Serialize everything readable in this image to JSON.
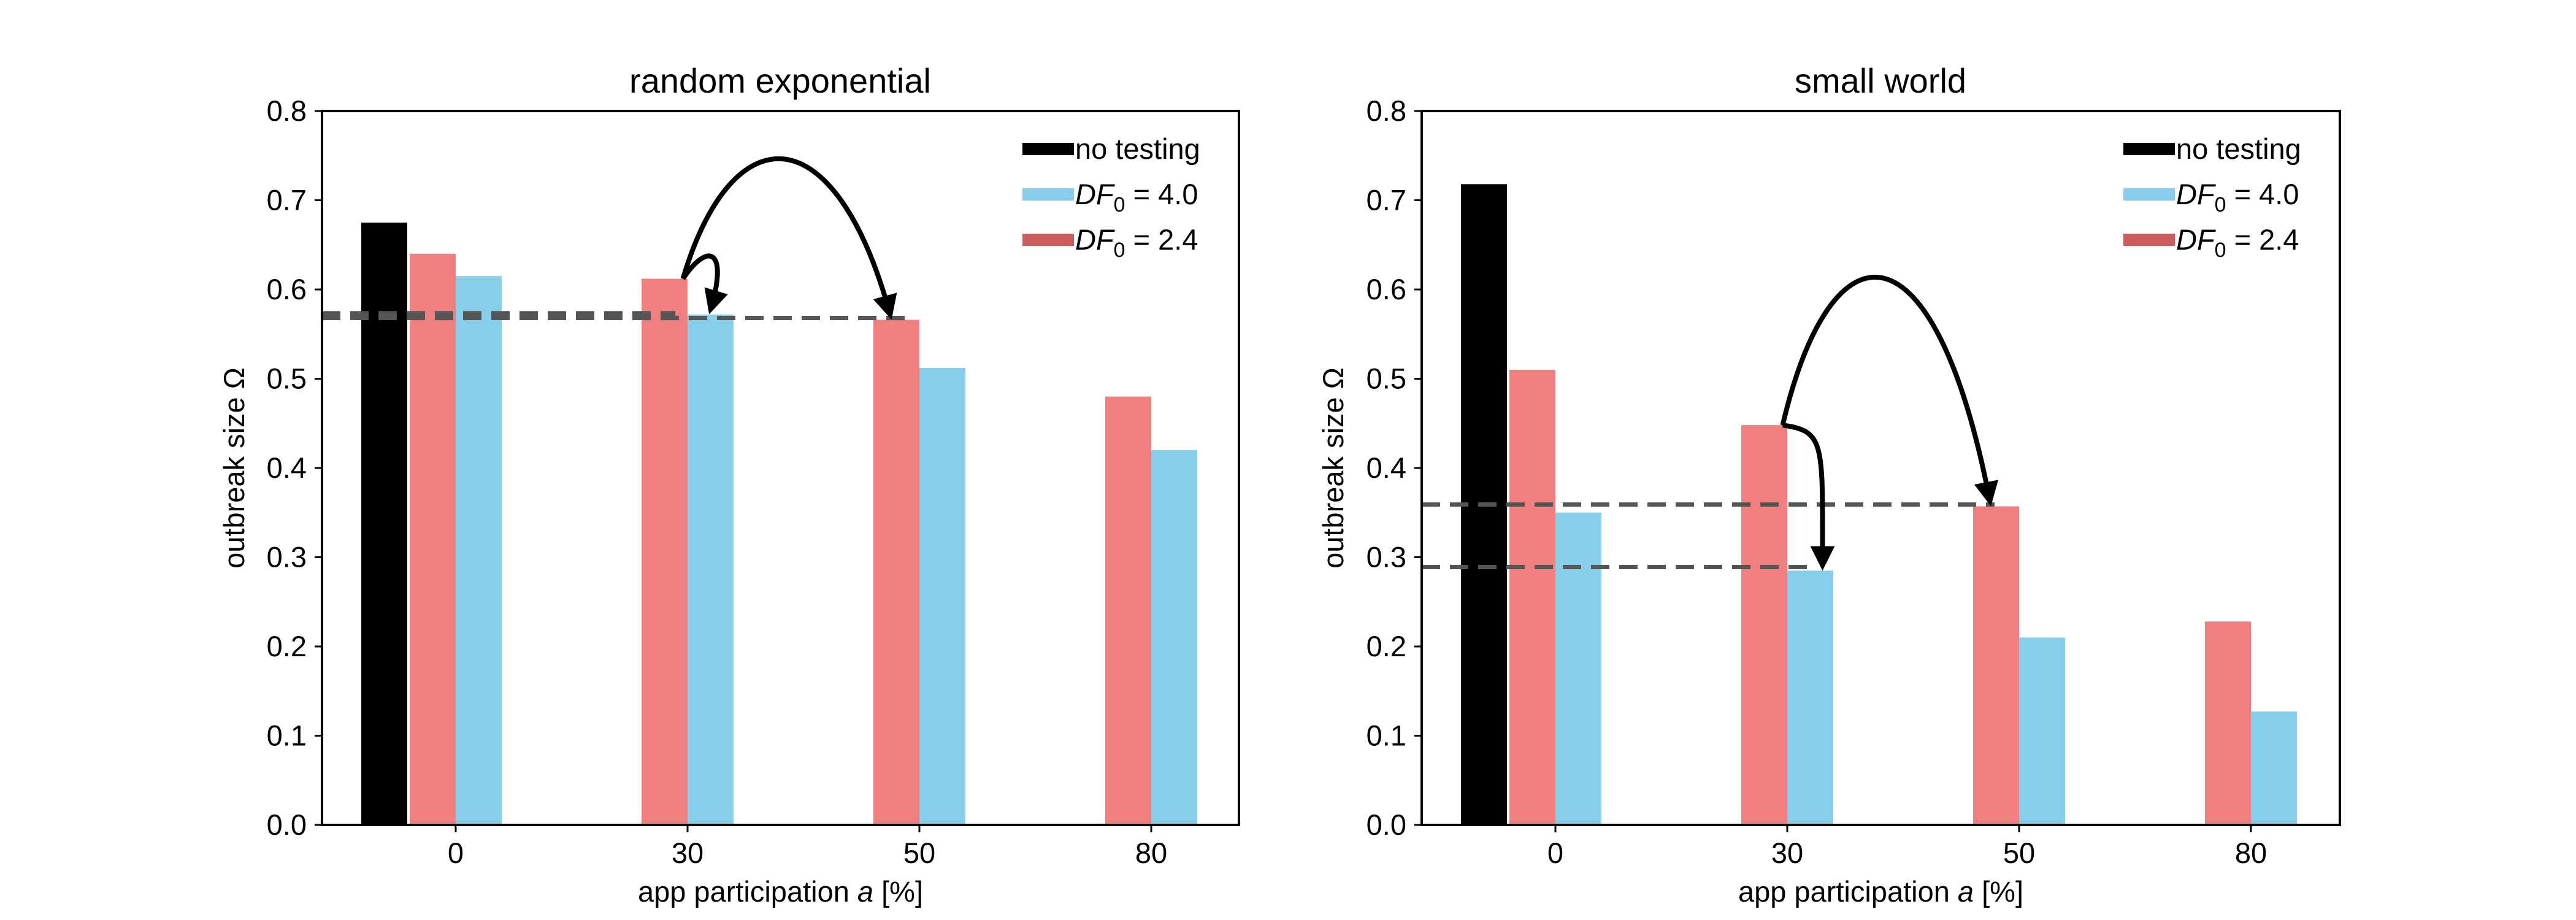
{
  "chart_data": [
    {
      "type": "bar",
      "title": "random exponential",
      "xlabel": "app participation a [%]",
      "ylabel": "outbreak size Ω",
      "ylim": [
        0,
        0.8
      ],
      "yticks": [
        "0.0",
        "0.1",
        "0.2",
        "0.3",
        "0.4",
        "0.5",
        "0.6",
        "0.7",
        "0.8"
      ],
      "categories": [
        "0",
        "30",
        "50",
        "80"
      ],
      "series": [
        {
          "name": "no testing",
          "color": "#000000",
          "values": [
            0.675,
            null,
            null,
            null
          ]
        },
        {
          "name": "DF0 = 2.4",
          "color": "#f08080",
          "values": [
            0.64,
            0.612,
            0.566,
            0.48
          ]
        },
        {
          "name": "DF0 = 4.0",
          "color": "#87ceeb",
          "values": [
            0.615,
            0.572,
            0.512,
            0.42
          ]
        }
      ],
      "reference_lines": [
        0.572,
        0.568
      ],
      "arrows": [
        {
          "from_category": "30",
          "from_series": "DF0 = 2.4",
          "to_category": "30",
          "to_series": "DF0 = 4.0"
        },
        {
          "from_category": "30",
          "from_series": "DF0 = 2.4",
          "to_category": "50",
          "to_series": "DF0 = 2.4"
        }
      ],
      "legend_position": "top-right",
      "grid": false
    },
    {
      "type": "bar",
      "title": "small world",
      "xlabel": "app participation a [%]",
      "ylabel": "outbreak size Ω",
      "ylim": [
        0,
        0.8
      ],
      "yticks": [
        "0.0",
        "0.1",
        "0.2",
        "0.3",
        "0.4",
        "0.5",
        "0.6",
        "0.7",
        "0.8"
      ],
      "categories": [
        "0",
        "30",
        "50",
        "80"
      ],
      "series": [
        {
          "name": "no testing",
          "color": "#000000",
          "values": [
            0.718,
            null,
            null,
            null
          ]
        },
        {
          "name": "DF0 = 2.4",
          "color": "#f08080",
          "values": [
            0.51,
            0.448,
            0.357,
            0.228
          ]
        },
        {
          "name": "DF0 = 4.0",
          "color": "#87ceeb",
          "values": [
            0.35,
            0.285,
            0.21,
            0.127
          ]
        }
      ],
      "reference_lines": [
        0.359,
        0.289
      ],
      "arrows": [
        {
          "from_category": "30",
          "from_series": "DF0 = 2.4",
          "to_category": "30",
          "to_series": "DF0 = 4.0"
        },
        {
          "from_category": "30",
          "from_series": "DF0 = 2.4",
          "to_category": "50",
          "to_series": "DF0 = 2.4"
        }
      ],
      "legend_position": "top-right",
      "grid": false
    }
  ],
  "legend": {
    "no_testing": "no testing",
    "df_symbol": "DF",
    "df_subscript": "0",
    "df40_value": " = 4.0",
    "df24_value": " = 2.4"
  }
}
